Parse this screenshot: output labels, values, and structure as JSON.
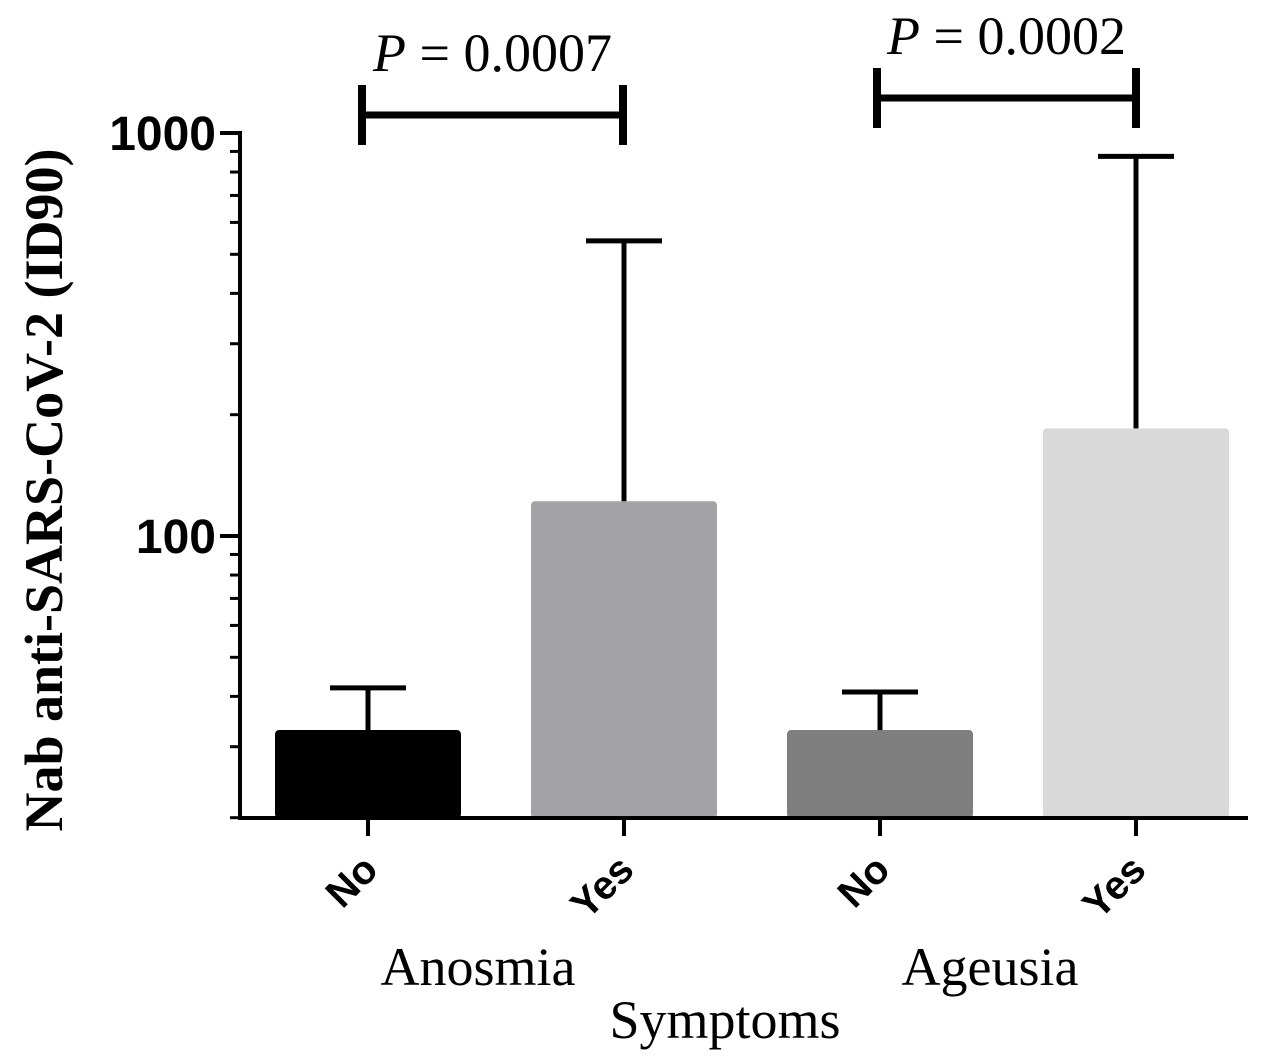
{
  "chart_data": {
    "type": "bar",
    "ylabel": "Nab anti-SARS-CoV-2 (ID90)",
    "xlabel": "Symptoms",
    "yscale": "log",
    "ylim": [
      20,
      1000
    ],
    "yticks": [
      {
        "value": 100,
        "label": "100"
      },
      {
        "value": 1000,
        "label": "1000"
      }
    ],
    "groups": [
      {
        "label": "Anosmia",
        "p_label": "P = 0.0007"
      },
      {
        "label": "Ageusia",
        "p_label": "P = 0.0002"
      }
    ],
    "bars": [
      {
        "group": "Anosmia",
        "category": "No",
        "value": 33,
        "error_upper": 42,
        "color": "#000000"
      },
      {
        "group": "Anosmia",
        "category": "Yes",
        "value": 122,
        "error_upper": 540,
        "color": "#a3a2a7"
      },
      {
        "group": "Ageusia",
        "category": "No",
        "value": 33,
        "error_upper": 41,
        "color": "#7f7f7f"
      },
      {
        "group": "Ageusia",
        "category": "Yes",
        "value": 185,
        "error_upper": 875,
        "color": "#d9d9d9"
      }
    ]
  }
}
